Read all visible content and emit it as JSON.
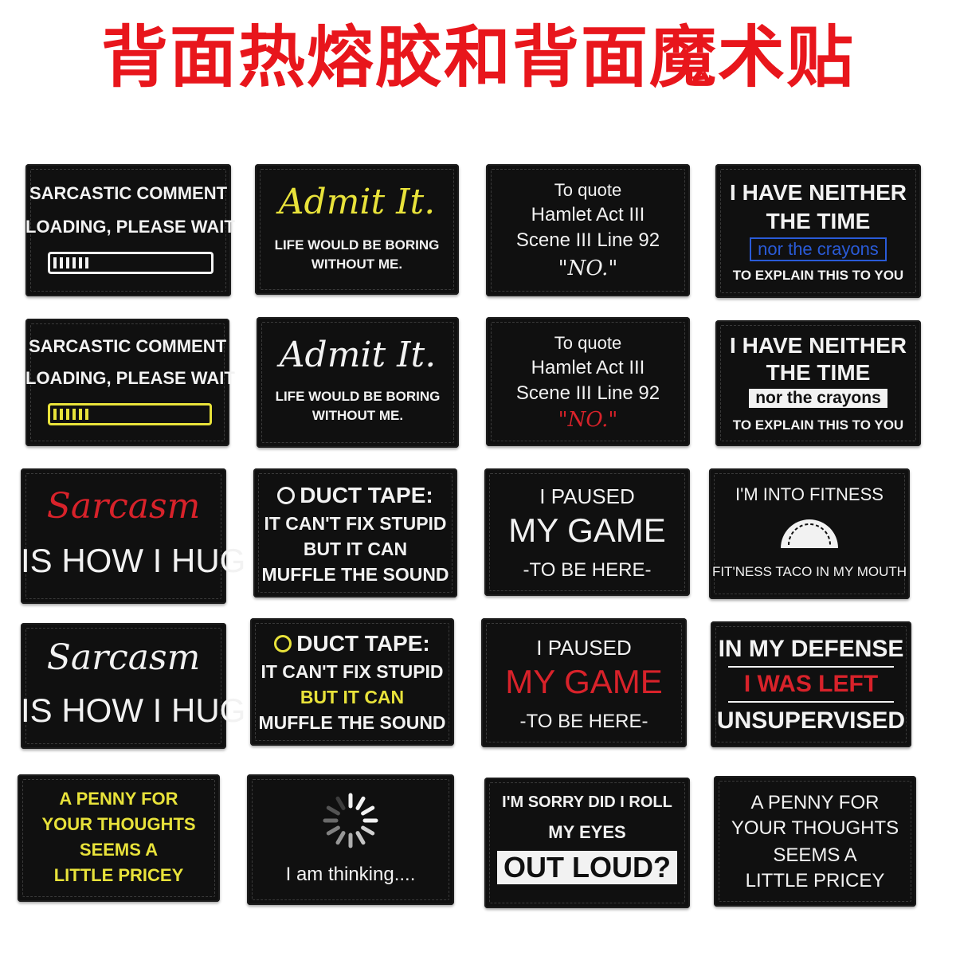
{
  "headline": "背面热熔胶和背面魔术贴",
  "colors": {
    "headline": "#e8161c",
    "patch": "#101010",
    "white": "#f2f2f2",
    "yellow": "#e8e23a",
    "red": "#d8222a",
    "blue": "#2a5bd8"
  },
  "patches": {
    "p1": {
      "l1": "SARCASTIC COMMENT",
      "l2": "LOADING, PLEASE WAIT",
      "progress": 0.22
    },
    "p2": {
      "l1": "Admit It.",
      "l2": "LIFE WOULD BE BORING",
      "l3": "WITHOUT ME."
    },
    "p3": {
      "l1": "To quote",
      "l2": "Hamlet Act III",
      "l3": "Scene III Line 92",
      "l4": "\"NO.\""
    },
    "p4": {
      "l1": "I HAVE NEITHER",
      "l2": "THE TIME",
      "l3": "nor the crayons",
      "l4": "TO EXPLAIN THIS TO YOU"
    },
    "p5": {
      "l1": "SARCASTIC COMMENT",
      "l2": "LOADING, PLEASE WAIT",
      "progress": 0.22
    },
    "p6": {
      "l1": "Admit It.",
      "l2": "LIFE WOULD BE BORING",
      "l3": "WITHOUT ME."
    },
    "p7": {
      "l1": "To quote",
      "l2": "Hamlet Act III",
      "l3": "Scene III Line 92",
      "l4": "\"NO.\""
    },
    "p8": {
      "l1": "I HAVE NEITHER",
      "l2": "THE TIME",
      "l3": "nor the crayons",
      "l4": "TO EXPLAIN THIS TO YOU"
    },
    "p9": {
      "l1": "Sarcasm",
      "l2": "IS HOW I HUG"
    },
    "p10": {
      "l1": "DUCT TAPE:",
      "l2": "IT CAN'T FIX STUPID",
      "l3": "BUT IT CAN",
      "l4": "MUFFLE THE SOUND"
    },
    "p11": {
      "l1": "I PAUSED",
      "l2": "MY GAME",
      "l3": "-TO BE HERE-"
    },
    "p12": {
      "l1": "I'M INTO FITNESS",
      "l2": "FIT'NESS TACO IN MY MOUTH"
    },
    "p13": {
      "l1": "Sarcasm",
      "l2": "IS HOW I HUG"
    },
    "p14": {
      "l1": "DUCT TAPE:",
      "l2": "IT CAN'T FIX STUPID",
      "l3": "BUT IT CAN",
      "l4": "MUFFLE THE SOUND"
    },
    "p15": {
      "l1": "I PAUSED",
      "l2": "MY GAME",
      "l3": "-TO BE HERE-"
    },
    "p16": {
      "l1": "IN MY DEFENSE",
      "l2": "I WAS LEFT",
      "l3": "UNSUPERVISED"
    },
    "p17": {
      "l1": "A PENNY FOR",
      "l2": "YOUR THOUGHTS",
      "l3": "SEEMS A",
      "l4": "LITTLE PRICEY"
    },
    "p18": {
      "l1": "I am thinking...."
    },
    "p19": {
      "l1": "I'M SORRY DID I ROLL",
      "l2": "MY EYES",
      "l3": "OUT LOUD?"
    },
    "p20": {
      "l1": "A PENNY FOR",
      "l2": "YOUR THOUGHTS",
      "l3": "SEEMS A",
      "l4": "LITTLE PRICEY"
    }
  }
}
